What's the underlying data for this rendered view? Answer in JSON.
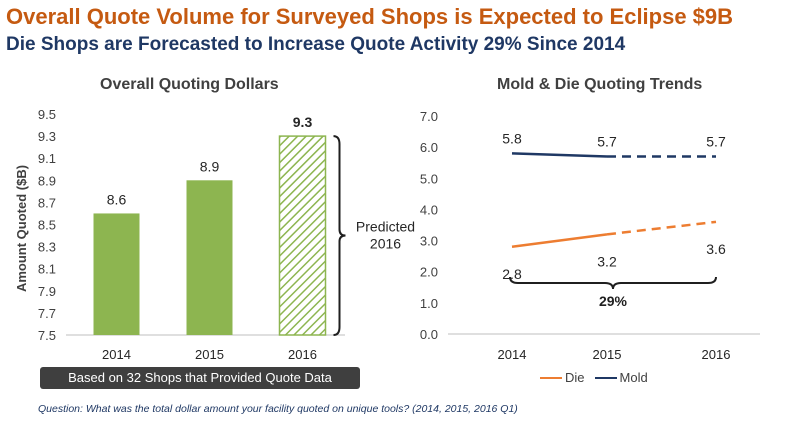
{
  "header": {
    "title": "Overall Quote Volume for Surveyed Shops is Expected to Eclipse $9B",
    "subtitle": "Die Shops are Forecasted to Increase Quote Activity 29% Since 2014"
  },
  "colors": {
    "title": "#c55a11",
    "subtitle": "#1f3864",
    "bar_green": "#8db550",
    "die": "#ed7d31",
    "mold": "#1f3864"
  },
  "chart_data": [
    {
      "type": "bar",
      "title": "Overall Quoting Dollars",
      "ylabel": "Amount Quoted ($B)",
      "categories": [
        "2014",
        "2015",
        "2016"
      ],
      "values": [
        8.6,
        8.9,
        9.3
      ],
      "value_labels": [
        "8.6",
        "8.9",
        "9.3"
      ],
      "ylim": [
        7.5,
        9.5
      ],
      "yticks": [
        "7.5",
        "7.7",
        "7.9",
        "8.1",
        "8.3",
        "8.5",
        "8.7",
        "8.9",
        "9.1",
        "9.3",
        "9.5"
      ],
      "hatched_category": "2016",
      "annotation": "Predicted\n2016",
      "grid": false
    },
    {
      "type": "line",
      "title": "Mold & Die Quoting Trends",
      "x": [
        "2014",
        "2015",
        "2016"
      ],
      "ylim": [
        0.0,
        7.0
      ],
      "yticks": [
        "0.0",
        "1.0",
        "2.0",
        "3.0",
        "4.0",
        "5.0",
        "6.0",
        "7.0"
      ],
      "series": [
        {
          "name": "Die",
          "values": [
            2.8,
            3.2,
            3.6
          ],
          "labels": [
            "2.8",
            "3.2",
            "3.6"
          ],
          "color": "#ed7d31",
          "dashed_last_segment": true
        },
        {
          "name": "Mold",
          "values": [
            5.8,
            5.7,
            5.7
          ],
          "labels": [
            "5.8",
            "5.7",
            "5.7"
          ],
          "color": "#1f3864",
          "dashed_last_segment": true
        }
      ],
      "brace_label": "29%",
      "legend_position": "bottom",
      "grid": false
    }
  ],
  "footer": {
    "note": "Based on 32 Shops that Provided Quote Data",
    "question": "Question: What was the total dollar amount your facility quoted on unique tools? (2014, 2015, 2016 Q1)"
  }
}
